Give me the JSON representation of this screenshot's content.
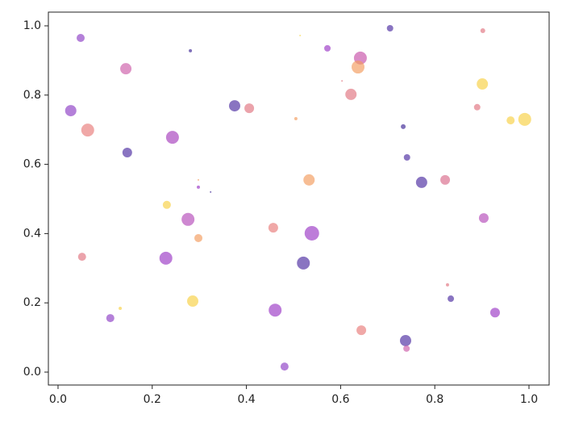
{
  "chart_data": {
    "type": "scatter",
    "x": [
      0.048,
      0.281,
      0.144,
      0.705,
      0.902,
      0.572,
      0.642,
      0.637,
      0.514,
      0.603,
      0.901,
      0.027,
      0.375,
      0.406,
      0.622,
      0.505,
      0.89,
      0.063,
      0.733,
      0.961,
      0.991,
      0.147,
      0.243,
      0.741,
      0.298,
      0.298,
      0.324,
      0.533,
      0.772,
      0.822,
      0.231,
      0.276,
      0.904,
      0.457,
      0.539,
      0.298,
      0.051,
      0.229,
      0.521,
      0.827,
      0.834,
      0.132,
      0.111,
      0.286,
      0.461,
      0.928,
      0.644,
      0.738,
      0.74,
      0.481
    ],
    "y": [
      0.965,
      0.928,
      0.876,
      0.993,
      0.986,
      0.935,
      0.907,
      0.881,
      0.972,
      0.841,
      0.832,
      0.755,
      0.769,
      0.762,
      0.802,
      0.732,
      0.765,
      0.699,
      0.709,
      0.727,
      0.73,
      0.634,
      0.678,
      0.62,
      0.555,
      0.534,
      0.52,
      0.555,
      0.548,
      0.555,
      0.483,
      0.441,
      0.445,
      0.417,
      0.401,
      0.387,
      0.333,
      0.329,
      0.315,
      0.252,
      0.212,
      0.184,
      0.156,
      0.205,
      0.179,
      0.172,
      0.121,
      0.091,
      0.068,
      0.016
    ],
    "sizes": [
      5,
      2,
      7,
      4,
      3,
      4,
      8,
      8,
      1,
      1,
      7,
      7,
      7,
      6,
      7,
      2,
      4,
      8,
      3,
      5,
      8,
      6,
      8,
      4,
      1,
      2,
      1,
      7,
      7,
      6,
      5,
      8,
      6,
      6,
      9,
      5,
      5,
      8,
      8,
      2,
      4,
      2,
      5,
      7,
      8,
      6,
      6,
      7,
      4,
      5
    ],
    "colors": [
      "#8c3cc4",
      "#3b2394",
      "#cc5aa8",
      "#4a2aa0",
      "#e0727e",
      "#9a35c4",
      "#c64ea8",
      "#f29a5a",
      "#f8d64a",
      "#e0727e",
      "#f8d040",
      "#8c3cc4",
      "#4a2aa0",
      "#e0727e",
      "#e0727e",
      "#f29a5a",
      "#e0727e",
      "#e87a78",
      "#3b2394",
      "#f8d040",
      "#f8d040",
      "#4a2aa0",
      "#a43cbc",
      "#4a2aa0",
      "#f29a5a",
      "#9a35c4",
      "#3b2394",
      "#f29a5a",
      "#4a2aa0",
      "#d86888",
      "#f8d040",
      "#b448b8",
      "#b448b8",
      "#e87a78",
      "#9a35c4",
      "#f29a5a",
      "#e0727e",
      "#9a35c4",
      "#4a2aa0",
      "#e0727e",
      "#4a2aa0",
      "#f8d040",
      "#8c3cc4",
      "#f8d040",
      "#9a35c4",
      "#9a35c4",
      "#e87a78",
      "#4a2aa0",
      "#cc5aa8",
      "#8c3cc4"
    ],
    "xlim": [
      -0.0205,
      1.0428
    ],
    "ylim": [
      -0.0373,
      1.0396
    ],
    "xticks": [
      {
        "value": 0,
        "label": "0.0"
      },
      0.2,
      0.4,
      0.6,
      0.8,
      {
        "value": 1,
        "label": "1.0"
      }
    ],
    "yticks": [
      {
        "value": 0,
        "label": "0.0"
      },
      0.2,
      0.4,
      0.6,
      0.8,
      {
        "value": 1,
        "label": "1.0"
      }
    ]
  }
}
